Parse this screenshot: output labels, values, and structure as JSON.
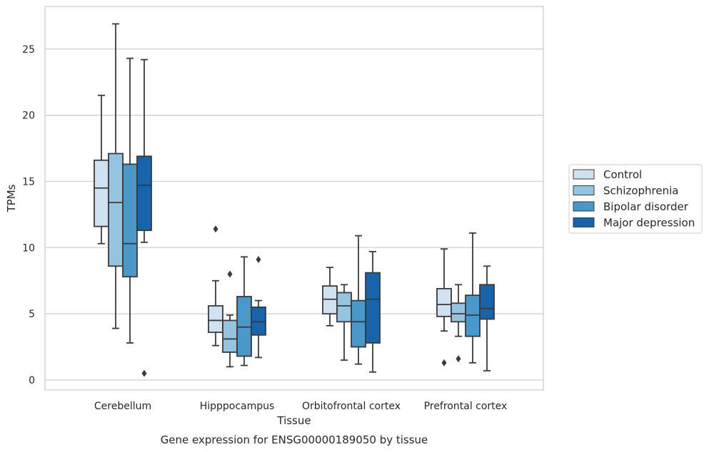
{
  "caption": "Gene expression for ENSG00000189050 by tissue",
  "chart_data": {
    "type": "boxplot",
    "xlabel": "Tissue",
    "ylabel": "TPMs",
    "ylim": [
      -0.6,
      28.0
    ],
    "yticks": [
      0,
      5,
      10,
      15,
      20,
      25
    ],
    "grid": "horizontal",
    "legend_position": "right",
    "categories": [
      "Cerebellum",
      "Hipppocampus",
      "Orbitofrontal cortex",
      "Prefrontal cortex"
    ],
    "series": [
      {
        "name": "Control",
        "color": "#d0e1f2",
        "boxes": [
          {
            "whislo": 10.3,
            "q1": 11.6,
            "median": 14.5,
            "q3": 16.6,
            "whishi": 21.5,
            "fliers": []
          },
          {
            "whislo": 2.6,
            "q1": 3.6,
            "median": 4.5,
            "q3": 5.6,
            "whishi": 7.5,
            "fliers": [
              11.4
            ]
          },
          {
            "whislo": 4.1,
            "q1": 5.0,
            "median": 6.1,
            "q3": 7.1,
            "whishi": 8.5,
            "fliers": []
          },
          {
            "whislo": 3.7,
            "q1": 4.8,
            "median": 5.7,
            "q3": 6.9,
            "whishi": 9.9,
            "fliers": [
              1.3
            ]
          }
        ]
      },
      {
        "name": "Schizophrenia",
        "color": "#94c4df",
        "boxes": [
          {
            "whislo": 3.9,
            "q1": 8.6,
            "median": 13.4,
            "q3": 17.1,
            "whishi": 26.9,
            "fliers": []
          },
          {
            "whislo": 1.0,
            "q1": 2.1,
            "median": 3.1,
            "q3": 4.5,
            "whishi": 4.9,
            "fliers": [
              8.0
            ]
          },
          {
            "whislo": 1.5,
            "q1": 4.4,
            "median": 5.6,
            "q3": 6.6,
            "whishi": 7.2,
            "fliers": []
          },
          {
            "whislo": 3.3,
            "q1": 4.4,
            "median": 5.0,
            "q3": 5.8,
            "whishi": 7.2,
            "fliers": [
              1.6
            ]
          }
        ]
      },
      {
        "name": "Bipolar disorder",
        "color": "#4a98c9",
        "boxes": [
          {
            "whislo": 2.8,
            "q1": 7.8,
            "median": 10.3,
            "q3": 16.3,
            "whishi": 24.3,
            "fliers": []
          },
          {
            "whislo": 1.1,
            "q1": 1.8,
            "median": 4.0,
            "q3": 6.3,
            "whishi": 9.3,
            "fliers": []
          },
          {
            "whislo": 1.2,
            "q1": 2.5,
            "median": 4.4,
            "q3": 6.0,
            "whishi": 10.9,
            "fliers": []
          },
          {
            "whislo": 1.3,
            "q1": 3.3,
            "median": 4.9,
            "q3": 6.4,
            "whishi": 11.1,
            "fliers": []
          }
        ]
      },
      {
        "name": "Major depression",
        "color": "#1764ab",
        "boxes": [
          {
            "whislo": 10.4,
            "q1": 11.3,
            "median": 14.7,
            "q3": 16.9,
            "whishi": 24.2,
            "fliers": [
              0.5
            ]
          },
          {
            "whislo": 1.7,
            "q1": 3.4,
            "median": 4.4,
            "q3": 5.5,
            "whishi": 6.0,
            "fliers": [
              9.1
            ]
          },
          {
            "whislo": 0.6,
            "q1": 2.8,
            "median": 6.1,
            "q3": 8.1,
            "whishi": 9.7,
            "fliers": []
          },
          {
            "whislo": 0.7,
            "q1": 4.6,
            "median": 5.4,
            "q3": 7.2,
            "whishi": 8.6,
            "fliers": []
          }
        ]
      }
    ]
  }
}
